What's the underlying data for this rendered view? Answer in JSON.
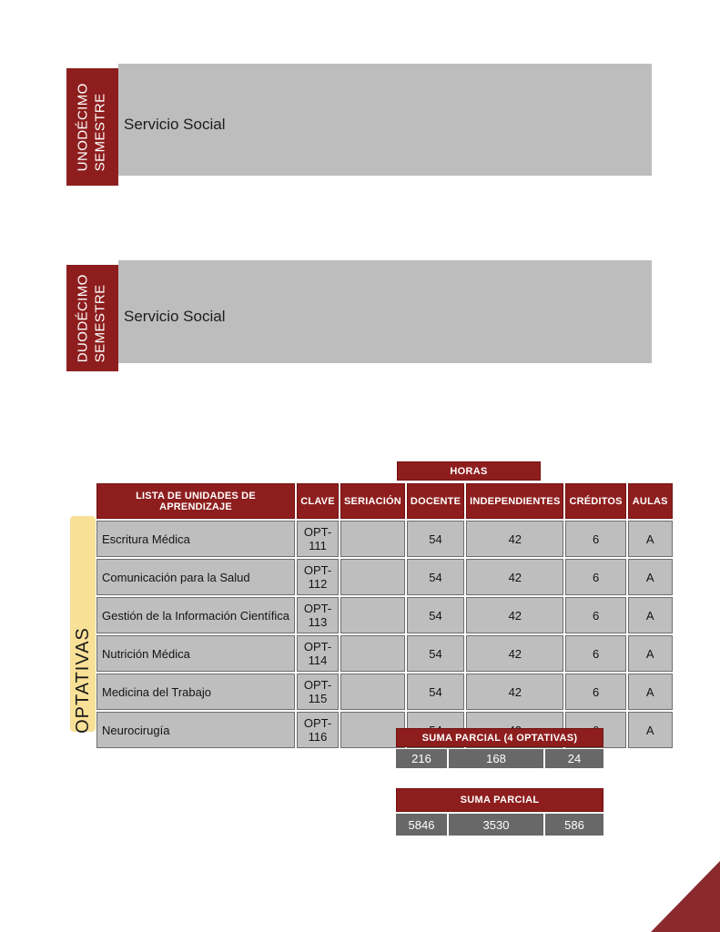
{
  "colors": {
    "maroon": "#8E1E1E",
    "banner_gray": "#BDBDBD",
    "cell_gray": "#BEBEBE",
    "cell_border": "#6E6E6E",
    "dark_total_cell": "#686868",
    "optativas_yellow": "#F8E096",
    "corner_triangle": "#8A2A2E"
  },
  "semesters": [
    {
      "label_line1": "UNODÉCIMO",
      "label_line2": "SEMESTRE",
      "content": "Servicio Social"
    },
    {
      "label_line1": "DUODÉCIMO",
      "label_line2": "SEMESTRE",
      "content": "Servicio Social"
    }
  ],
  "optativas": {
    "side_label": "OPTATIVAS",
    "horas_label": "HORAS",
    "headers": {
      "lista": "LISTA DE UNIDADES DE APRENDIZAJE",
      "clave": "CLAVE",
      "seriacion": "SERIACIÓN",
      "docente": "DOCENTE",
      "independientes": "INDEPENDIENTES",
      "creditos": "CRÉDITOS",
      "aulas": "AULAS"
    },
    "rows": [
      {
        "nombre": "Escritura Médica",
        "clave": "OPT-111",
        "seriacion": "",
        "docente": "54",
        "independientes": "42",
        "creditos": "6",
        "aulas": "A"
      },
      {
        "nombre": "Comunicación para la Salud",
        "clave": "OPT-112",
        "seriacion": "",
        "docente": "54",
        "independientes": "42",
        "creditos": "6",
        "aulas": "A"
      },
      {
        "nombre": "Gestión de la Información Científica",
        "clave": "OPT-113",
        "seriacion": "",
        "docente": "54",
        "independientes": "42",
        "creditos": "6",
        "aulas": "A"
      },
      {
        "nombre": "Nutrición Médica",
        "clave": "OPT-114",
        "seriacion": "",
        "docente": "54",
        "independientes": "42",
        "creditos": "6",
        "aulas": "A"
      },
      {
        "nombre": "Medicina del Trabajo",
        "clave": "OPT-115",
        "seriacion": "",
        "docente": "54",
        "independientes": "42",
        "creditos": "6",
        "aulas": "A"
      },
      {
        "nombre": "Neurocirugía",
        "clave": "OPT-116",
        "seriacion": "",
        "docente": "54",
        "independientes": "42",
        "creditos": "6",
        "aulas": "A"
      }
    ],
    "suma_optativas": {
      "label": "SUMA PARCIAL (4 OPTATIVAS)",
      "values": [
        "216",
        "168",
        "24"
      ]
    },
    "suma_parcial": {
      "label": "SUMA PARCIAL",
      "values": [
        "5846",
        "3530",
        "586"
      ]
    }
  }
}
